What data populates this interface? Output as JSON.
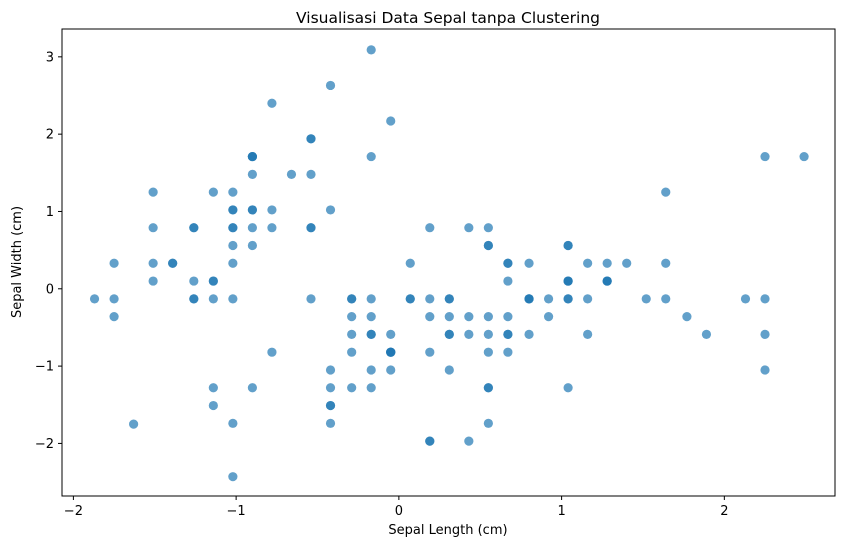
{
  "chart_data": {
    "type": "scatter",
    "title": "Visualisasi Data Sepal tanpa Clustering",
    "xlabel": "Sepal Length (cm)",
    "ylabel": "Sepal Width (cm)",
    "xlim": [
      -2.07,
      2.68
    ],
    "ylim": [
      -2.68,
      3.36
    ],
    "xticks": [
      -2,
      -1,
      0,
      1,
      2
    ],
    "yticks": [
      -2,
      -1,
      0,
      1,
      2,
      3
    ],
    "xtick_labels": [
      "−2",
      "−1",
      "0",
      "1",
      "2"
    ],
    "ytick_labels": [
      "−2",
      "−1",
      "0",
      "1",
      "2",
      "3"
    ],
    "grid": false,
    "legend": "none",
    "marker_color": "#1f77b4",
    "series": [
      {
        "points": [
          [
            -0.9,
            1.02
          ],
          [
            -1.14,
            -0.13
          ],
          [
            -1.39,
            0.33
          ],
          [
            -1.51,
            0.1
          ],
          [
            -1.02,
            1.25
          ],
          [
            -0.54,
            1.94
          ],
          [
            -1.51,
            0.79
          ],
          [
            -1.02,
            0.79
          ],
          [
            -1.75,
            -0.36
          ],
          [
            -1.14,
            0.1
          ],
          [
            -0.54,
            1.48
          ],
          [
            -1.26,
            0.79
          ],
          [
            -1.26,
            -0.13
          ],
          [
            -1.87,
            -0.13
          ],
          [
            -0.05,
            2.17
          ],
          [
            -0.17,
            3.09
          ],
          [
            -0.54,
            1.94
          ],
          [
            -0.9,
            1.02
          ],
          [
            -0.17,
            1.71
          ],
          [
            -0.9,
            1.71
          ],
          [
            -0.54,
            0.79
          ],
          [
            -0.9,
            1.48
          ],
          [
            -1.51,
            1.25
          ],
          [
            -0.9,
            0.56
          ],
          [
            -1.26,
            0.79
          ],
          [
            -1.02,
            -0.13
          ],
          [
            -1.02,
            0.79
          ],
          [
            -0.78,
            1.02
          ],
          [
            -0.78,
            0.79
          ],
          [
            -1.39,
            0.33
          ],
          [
            -1.26,
            0.1
          ],
          [
            -0.54,
            0.79
          ],
          [
            -0.78,
            2.4
          ],
          [
            -0.42,
            2.63
          ],
          [
            -1.14,
            0.1
          ],
          [
            -1.02,
            0.33
          ],
          [
            -0.42,
            1.02
          ],
          [
            -1.14,
            1.25
          ],
          [
            -1.75,
            -0.13
          ],
          [
            -0.9,
            0.79
          ],
          [
            -1.02,
            1.02
          ],
          [
            -1.63,
            -1.75
          ],
          [
            -1.75,
            0.33
          ],
          [
            -1.02,
            1.02
          ],
          [
            -0.9,
            1.71
          ],
          [
            -1.26,
            -0.13
          ],
          [
            -0.9,
            1.71
          ],
          [
            -1.51,
            0.33
          ],
          [
            -0.66,
            1.48
          ],
          [
            -1.02,
            0.56
          ],
          [
            1.4,
            0.33
          ],
          [
            0.67,
            0.33
          ],
          [
            1.28,
            0.1
          ],
          [
            -0.42,
            -1.74
          ],
          [
            0.8,
            -0.59
          ],
          [
            -0.17,
            -0.59
          ],
          [
            0.55,
            0.56
          ],
          [
            -1.14,
            -1.51
          ],
          [
            0.92,
            -0.36
          ],
          [
            -0.78,
            -0.82
          ],
          [
            -1.02,
            -2.43
          ],
          [
            0.07,
            -0.13
          ],
          [
            0.19,
            -1.97
          ],
          [
            0.31,
            -0.36
          ],
          [
            -0.29,
            -0.36
          ],
          [
            1.04,
            0.1
          ],
          [
            -0.29,
            -0.13
          ],
          [
            -0.05,
            -0.82
          ],
          [
            0.43,
            -1.97
          ],
          [
            -0.29,
            -1.28
          ],
          [
            0.07,
            0.33
          ],
          [
            0.31,
            -0.59
          ],
          [
            0.55,
            -1.28
          ],
          [
            0.31,
            -0.59
          ],
          [
            0.67,
            -0.36
          ],
          [
            0.92,
            -0.13
          ],
          [
            1.16,
            -0.59
          ],
          [
            1.04,
            -0.13
          ],
          [
            0.19,
            -0.36
          ],
          [
            -0.17,
            -1.05
          ],
          [
            -0.42,
            -1.51
          ],
          [
            -0.42,
            -1.51
          ],
          [
            -0.05,
            -0.82
          ],
          [
            0.19,
            -0.82
          ],
          [
            -0.54,
            -0.13
          ],
          [
            0.19,
            0.79
          ],
          [
            1.04,
            0.1
          ],
          [
            0.55,
            -1.74
          ],
          [
            -0.29,
            -0.13
          ],
          [
            -0.42,
            -1.28
          ],
          [
            -0.42,
            -1.05
          ],
          [
            0.31,
            -0.13
          ],
          [
            -0.05,
            -1.05
          ],
          [
            -1.02,
            -1.74
          ],
          [
            -0.29,
            -0.82
          ],
          [
            -0.17,
            -0.13
          ],
          [
            -0.17,
            -0.36
          ],
          [
            0.43,
            -0.36
          ],
          [
            -0.9,
            -1.28
          ],
          [
            -0.17,
            -0.59
          ],
          [
            0.55,
            0.56
          ],
          [
            -0.05,
            -0.82
          ],
          [
            1.52,
            -0.13
          ],
          [
            0.55,
            -0.36
          ],
          [
            0.8,
            -0.13
          ],
          [
            2.13,
            -0.13
          ],
          [
            -1.14,
            -1.28
          ],
          [
            1.77,
            -0.36
          ],
          [
            1.04,
            -1.28
          ],
          [
            1.64,
            1.25
          ],
          [
            0.8,
            0.33
          ],
          [
            0.67,
            -0.82
          ],
          [
            1.16,
            -0.13
          ],
          [
            -0.17,
            -1.28
          ],
          [
            -0.05,
            -0.59
          ],
          [
            0.67,
            0.33
          ],
          [
            0.8,
            -0.13
          ],
          [
            2.25,
            1.71
          ],
          [
            2.25,
            -1.05
          ],
          [
            0.19,
            -1.97
          ],
          [
            1.28,
            0.33
          ],
          [
            -0.29,
            -0.59
          ],
          [
            2.25,
            -0.59
          ],
          [
            0.55,
            -0.82
          ],
          [
            1.04,
            0.56
          ],
          [
            1.64,
            0.33
          ],
          [
            0.43,
            -0.59
          ],
          [
            0.31,
            -0.13
          ],
          [
            0.67,
            -0.59
          ],
          [
            1.64,
            -0.13
          ],
          [
            1.89,
            -0.59
          ],
          [
            2.49,
            1.71
          ],
          [
            0.67,
            -0.59
          ],
          [
            0.55,
            -0.59
          ],
          [
            0.31,
            -1.05
          ],
          [
            2.25,
            -0.13
          ],
          [
            0.55,
            0.79
          ],
          [
            0.67,
            0.1
          ],
          [
            0.19,
            -0.13
          ],
          [
            1.28,
            0.1
          ],
          [
            1.04,
            0.1
          ],
          [
            1.28,
            0.1
          ],
          [
            -0.05,
            -0.82
          ],
          [
            1.16,
            0.33
          ],
          [
            1.04,
            0.56
          ],
          [
            1.04,
            -0.13
          ],
          [
            0.55,
            -1.28
          ],
          [
            0.8,
            -0.13
          ],
          [
            0.43,
            0.79
          ],
          [
            0.07,
            -0.13
          ]
        ]
      }
    ]
  }
}
